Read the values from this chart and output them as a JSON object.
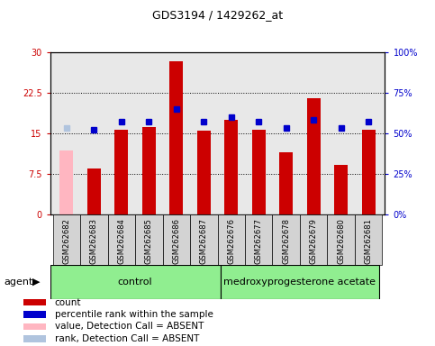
{
  "title": "GDS3194 / 1429262_at",
  "samples": [
    "GSM262682",
    "GSM262683",
    "GSM262684",
    "GSM262685",
    "GSM262686",
    "GSM262687",
    "GSM262676",
    "GSM262677",
    "GSM262678",
    "GSM262679",
    "GSM262680",
    "GSM262681"
  ],
  "count_values": [
    null,
    8.5,
    15.7,
    16.2,
    28.3,
    15.5,
    17.5,
    15.7,
    11.5,
    21.5,
    9.2,
    15.7
  ],
  "absent_value": 11.8,
  "percentile_values": [
    null,
    52,
    57,
    57,
    65,
    57,
    60,
    57,
    53,
    58,
    53,
    57
  ],
  "absent_percentile": 53,
  "absent_samples": [
    0
  ],
  "ylim_left": [
    0,
    30
  ],
  "ylim_right": [
    0,
    100
  ],
  "yticks_left": [
    0,
    7.5,
    15,
    22.5,
    30
  ],
  "yticks_right": [
    0,
    25,
    50,
    75,
    100
  ],
  "ytick_labels_left": [
    "0",
    "7.5",
    "15",
    "22.5",
    "30"
  ],
  "ytick_labels_right": [
    "0%",
    "25%",
    "50%",
    "75%",
    "100%"
  ],
  "control_indices": [
    0,
    1,
    2,
    3,
    4,
    5
  ],
  "treatment_indices": [
    6,
    7,
    8,
    9,
    10,
    11
  ],
  "control_label": "control",
  "treatment_label": "medroxyprogesterone acetate",
  "agent_label": "agent",
  "bar_color": "#cc0000",
  "absent_bar_color": "#ffb6c1",
  "dot_color": "#0000cc",
  "absent_dot_color": "#b0c4de",
  "bar_width": 0.5,
  "control_bg": "#90EE90",
  "treatment_bg": "#90EE90",
  "plot_bg": "#e8e8e8",
  "legend_labels": [
    "count",
    "percentile rank within the sample",
    "value, Detection Call = ABSENT",
    "rank, Detection Call = ABSENT"
  ],
  "legend_colors": [
    "#cc0000",
    "#0000cc",
    "#ffb6c1",
    "#b0c4de"
  ]
}
